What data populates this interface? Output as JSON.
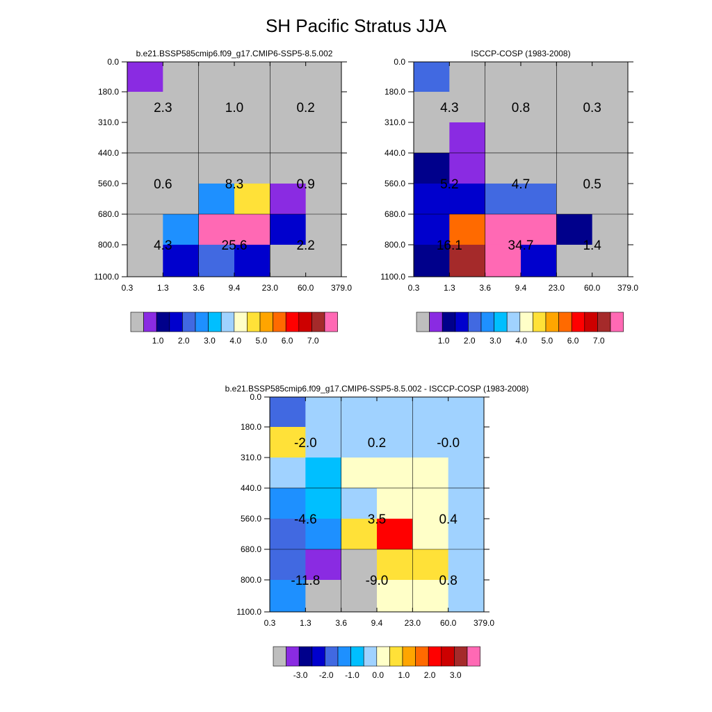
{
  "main_title": "SH Pacific Stratus JJA",
  "colors": {
    "missing": "#bebebe",
    "abs_palette": [
      "#bebebe",
      "#8a2be2",
      "#00008b",
      "#0000cd",
      "#4169e1",
      "#1e90ff",
      "#00bfff",
      "#a0d2ff",
      "#ffffc8",
      "#ffe138",
      "#ffa500",
      "#ff6a00",
      "#ff0000",
      "#cd0000",
      "#a52a2a",
      "#ff69b4"
    ],
    "diff_palette": [
      "#bebebe",
      "#8a2be2",
      "#00008b",
      "#0000cd",
      "#4169e1",
      "#1e90ff",
      "#00bfff",
      "#a0d2ff",
      "#ffffc8",
      "#ffe138",
      "#ffa500",
      "#ff6a00",
      "#ff0000",
      "#cd0000",
      "#a52a2a",
      "#ff69b4"
    ]
  },
  "chart_data": [
    {
      "type": "heatmap",
      "title": "b.e21.BSSP585cmip6.f09_g17.CMIP6-SSP5-8.5.002",
      "x_ticks": [
        "0.3",
        "1.3",
        "3.6",
        "9.4",
        "23.0",
        "60.0",
        "379.0"
      ],
      "y_ticks": [
        "0.0",
        "180.0",
        "310.0",
        "440.0",
        "560.0",
        "680.0",
        "800.0",
        "1100.0"
      ],
      "cell_colors": [
        [
          1,
          0,
          0,
          0,
          0,
          0
        ],
        [
          0,
          0,
          0,
          0,
          0,
          0
        ],
        [
          0,
          0,
          0,
          0,
          0,
          0
        ],
        [
          0,
          0,
          0,
          0,
          0,
          0
        ],
        [
          0,
          0,
          5,
          9,
          1,
          0
        ],
        [
          0,
          5,
          15,
          15,
          3,
          0
        ],
        [
          0,
          3,
          4,
          3,
          0,
          0
        ]
      ],
      "labels": [
        [
          "2.3",
          "1.0",
          "0.2"
        ],
        [
          "0.6",
          "8.3",
          "0.9"
        ],
        [
          "4.3",
          "25.6",
          "2.2"
        ]
      ],
      "colorbar_ticks": [
        "1.0",
        "2.0",
        "3.0",
        "4.0",
        "5.0",
        "6.0",
        "7.0"
      ]
    },
    {
      "type": "heatmap",
      "title": "ISCCP-COSP (1983-2008)",
      "x_ticks": [
        "0.3",
        "1.3",
        "3.6",
        "9.4",
        "23.0",
        "60.0",
        "379.0"
      ],
      "y_ticks": [
        "0.0",
        "180.0",
        "310.0",
        "440.0",
        "560.0",
        "680.0",
        "800.0",
        "1100.0"
      ],
      "cell_colors": [
        [
          4,
          0,
          0,
          0,
          0,
          0
        ],
        [
          0,
          0,
          0,
          0,
          0,
          0
        ],
        [
          0,
          1,
          0,
          0,
          0,
          0
        ],
        [
          2,
          1,
          0,
          0,
          0,
          0
        ],
        [
          3,
          3,
          4,
          4,
          0,
          0
        ],
        [
          3,
          11,
          15,
          15,
          2,
          0
        ],
        [
          2,
          14,
          15,
          3,
          0,
          0
        ]
      ],
      "labels": [
        [
          "4.3",
          "0.8",
          "0.3"
        ],
        [
          "5.2",
          "4.7",
          "0.5"
        ],
        [
          "16.1",
          "34.7",
          "1.4"
        ]
      ],
      "colorbar_ticks": [
        "1.0",
        "2.0",
        "3.0",
        "4.0",
        "5.0",
        "6.0",
        "7.0"
      ]
    },
    {
      "type": "heatmap",
      "title": "b.e21.BSSP585cmip6.f09_g17.CMIP6-SSP5-8.5.002 - ISCCP-COSP (1983-2008)",
      "x_ticks": [
        "0.3",
        "1.3",
        "3.6",
        "9.4",
        "23.0",
        "60.0",
        "379.0"
      ],
      "y_ticks": [
        "0.0",
        "180.0",
        "310.0",
        "440.0",
        "560.0",
        "680.0",
        "800.0",
        "1100.0"
      ],
      "cell_colors": [
        [
          4,
          7,
          7,
          7,
          7,
          7
        ],
        [
          9,
          7,
          7,
          7,
          7,
          7
        ],
        [
          7,
          6,
          8,
          8,
          8,
          7
        ],
        [
          5,
          6,
          7,
          8,
          8,
          7
        ],
        [
          4,
          5,
          9,
          12,
          8,
          7
        ],
        [
          4,
          1,
          0,
          9,
          9,
          7
        ],
        [
          5,
          0,
          0,
          8,
          8,
          7
        ]
      ],
      "labels": [
        [
          "-2.0",
          "0.2",
          "-0.0"
        ],
        [
          "-4.6",
          "3.5",
          "0.4"
        ],
        [
          "-11.8",
          "-9.0",
          "0.8"
        ]
      ],
      "colorbar_ticks": [
        "-3.0",
        "-2.0",
        "-1.0",
        "0.0",
        "1.0",
        "2.0",
        "3.0"
      ]
    }
  ]
}
